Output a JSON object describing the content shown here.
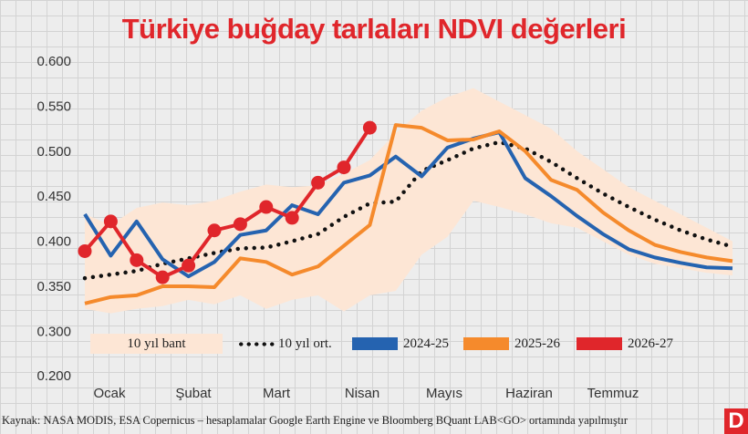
{
  "title": "Türkiye buğday tarlaları NDVI değerleri",
  "source": "Kaynak: NASA MODIS, ESA Copernicus – hesaplamalar Google Earth Engine ve Bloomberg BQuant LAB<GO> ortamında yapılmıştır",
  "logo": "D",
  "colors": {
    "band": "#fde6d5",
    "avg": "#111111",
    "s2425": "#2563b0",
    "s2526": "#f58a2c",
    "s2627": "#e0262b",
    "title": "#e0262b"
  },
  "chart_data": {
    "type": "line",
    "title": "Türkiye buğday tarlaları NDVI değerleri",
    "xlabel": "",
    "ylabel": "",
    "y_ticks": [
      "0.600",
      "0.550",
      "0.500",
      "0.450",
      "0.400",
      "0.350",
      "0.300",
      "0.200"
    ],
    "y_tick_values": [
      0.6,
      0.55,
      0.5,
      0.45,
      0.4,
      0.35,
      0.3,
      0.2
    ],
    "axis_break": "between 0.200 and 0.300",
    "x_ticks": [
      "Ocak",
      "Şubat",
      "Mart",
      "Nisan",
      "Mayıs",
      "Haziran",
      "Temmuz"
    ],
    "grid": true,
    "legend_placement": "bottom",
    "legend": {
      "band": "10 yıl bant",
      "avg": "10 yıl ort.",
      "s2425": "2024-25",
      "s2526": "2025-26",
      "s2627": "2026-27"
    },
    "band_upper": [
      0.43,
      0.418,
      0.437,
      0.443,
      0.44,
      0.445,
      0.455,
      0.463,
      0.46,
      0.462,
      0.475,
      0.49,
      0.52,
      0.545,
      0.56,
      0.57,
      0.555,
      0.54,
      0.525,
      0.5,
      0.48,
      0.46,
      0.445,
      0.43,
      0.415,
      0.4
    ],
    "band_lower": [
      0.325,
      0.32,
      0.325,
      0.328,
      0.335,
      0.33,
      0.34,
      0.325,
      0.335,
      0.34,
      0.322,
      0.34,
      0.345,
      0.385,
      0.405,
      0.445,
      0.438,
      0.43,
      0.42,
      0.415,
      0.4,
      0.385,
      0.375,
      0.37,
      0.365,
      0.362
    ],
    "series": [
      {
        "name": "10 yıl ort.",
        "key": "avg",
        "values": [
          0.359,
          0.363,
          0.367,
          0.375,
          0.381,
          0.387,
          0.392,
          0.393,
          0.4,
          0.408,
          0.427,
          0.442,
          0.444,
          0.478,
          0.49,
          0.503,
          0.51,
          0.503,
          0.488,
          0.47,
          0.453,
          0.438,
          0.424,
          0.412,
          0.402,
          0.394
        ]
      },
      {
        "name": "2024-25",
        "key": "s2425",
        "values": [
          0.43,
          0.384,
          0.422,
          0.38,
          0.361,
          0.377,
          0.407,
          0.412,
          0.44,
          0.43,
          0.465,
          0.473,
          0.494,
          0.472,
          0.504,
          0.514,
          0.521,
          0.47,
          0.45,
          0.428,
          0.408,
          0.391,
          0.382,
          0.376,
          0.371,
          0.37
        ]
      },
      {
        "name": "2025-26",
        "key": "s2526",
        "values": [
          0.331,
          0.338,
          0.34,
          0.35,
          0.35,
          0.349,
          0.381,
          0.377,
          0.363,
          0.372,
          0.395,
          0.418,
          0.529,
          0.526,
          0.512,
          0.513,
          0.522,
          0.5,
          0.468,
          0.457,
          0.432,
          0.412,
          0.396,
          0.388,
          0.382,
          0.378
        ]
      },
      {
        "name": "2026-27",
        "key": "s2627",
        "markers": true,
        "values": [
          0.389,
          0.422,
          0.379,
          0.36,
          0.373,
          0.412,
          0.419,
          0.438,
          0.426,
          0.465,
          0.482,
          0.526
        ]
      }
    ]
  }
}
